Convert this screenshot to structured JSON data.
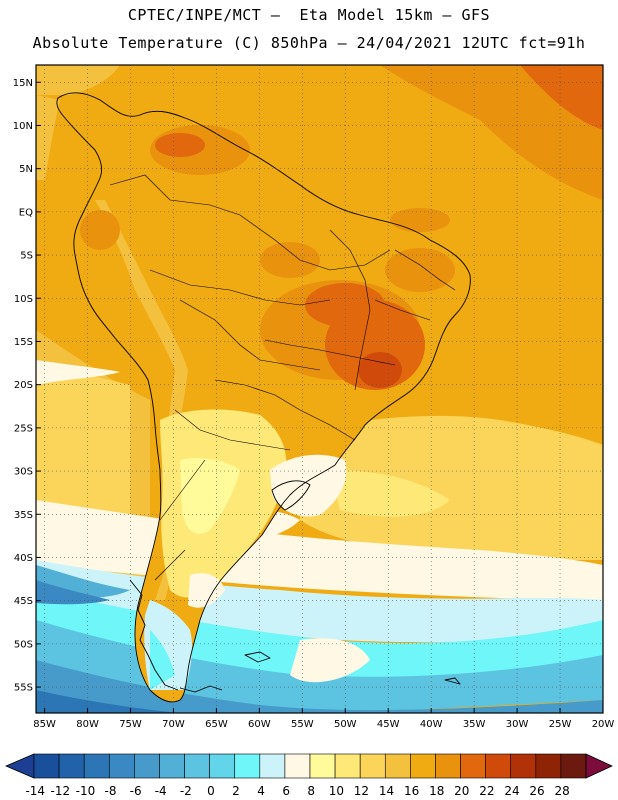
{
  "header": {
    "line1": "CPTEC/INPE/MCT –  Eta Model 15km – GFS",
    "line2": "Absolute Temperature (C) 850hPa – 24/04/2021 12UTC fct=91h"
  },
  "map": {
    "lat_range": [
      -58,
      17
    ],
    "lon_range": [
      -86,
      -20
    ],
    "lat_ticks": [
      "15N",
      "10N",
      "5N",
      "EQ",
      "5S",
      "10S",
      "15S",
      "20S",
      "25S",
      "30S",
      "35S",
      "40S",
      "45S",
      "50S",
      "55S"
    ],
    "lat_values": [
      15,
      10,
      5,
      0,
      -5,
      -10,
      -15,
      -20,
      -25,
      -30,
      -35,
      -40,
      -45,
      -50,
      -55
    ],
    "lon_ticks": [
      "85W",
      "80W",
      "75W",
      "70W",
      "65W",
      "60W",
      "55W",
      "50W",
      "45W",
      "40W",
      "35W",
      "30W",
      "25W",
      "20W"
    ],
    "lon_values": [
      -85,
      -80,
      -75,
      -70,
      -65,
      -60,
      -55,
      -50,
      -45,
      -40,
      -35,
      -30,
      -25,
      -20
    ],
    "grid": "dotted"
  },
  "colorbar": {
    "labels": [
      "-14",
      "-12",
      "-10",
      "-8",
      "-6",
      "-4",
      "-2",
      "0",
      "2",
      "4",
      "6",
      "8",
      "10",
      "12",
      "14",
      "16",
      "18",
      "20",
      "22",
      "24",
      "26",
      "28"
    ],
    "colors": [
      "#1a4f9c",
      "#2262a8",
      "#2c76b6",
      "#3a89c2",
      "#469bcb",
      "#52afd5",
      "#5cc3e0",
      "#62d5ea",
      "#6ef6f8",
      "#cdf3fa",
      "#fff8e4",
      "#fffa9a",
      "#fde878",
      "#fbd55a",
      "#f4c13e",
      "#f0aa12",
      "#e9920e",
      "#e1680d",
      "#cf4a0b",
      "#b13209",
      "#8e2306",
      "#6c1a10"
    ],
    "under_color": "#1c3f93",
    "over_color": "#7b0c3b"
  }
}
